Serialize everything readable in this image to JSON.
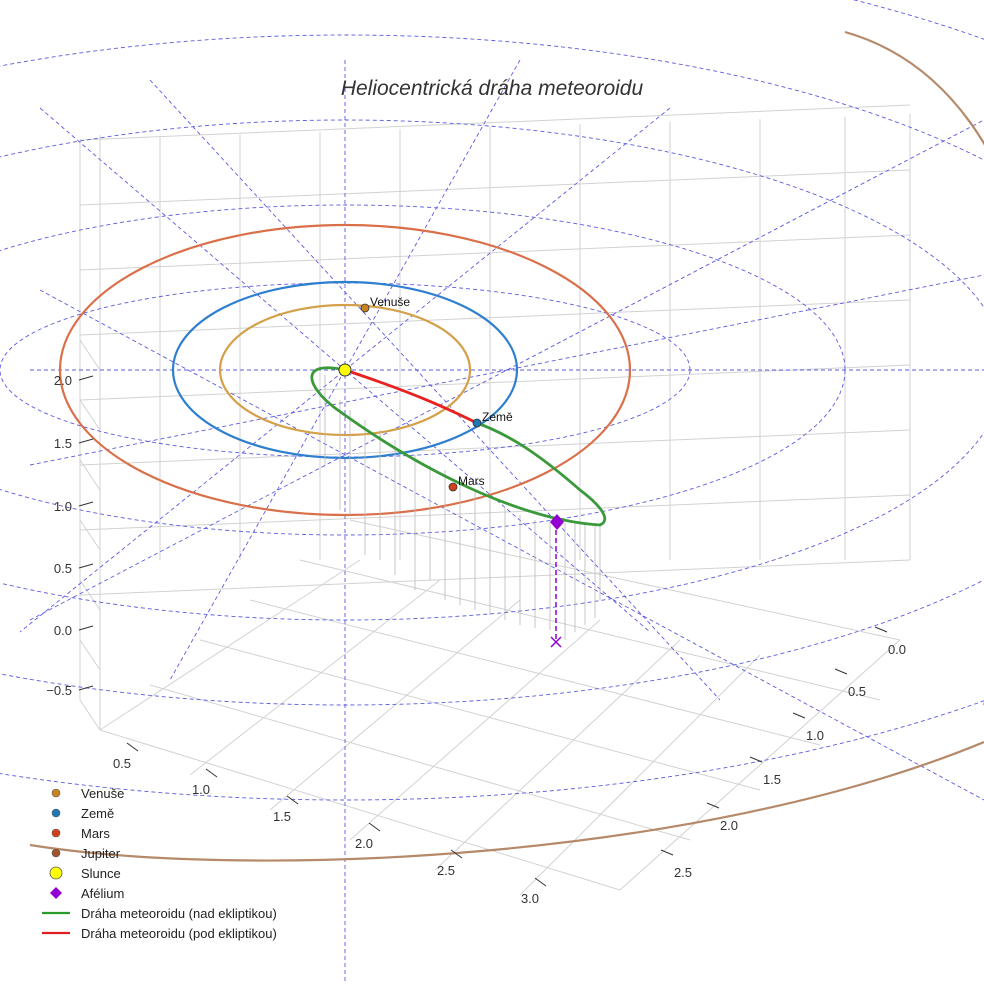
{
  "chart_data": {
    "type": "scatter3d",
    "title": "Heliocentrická dráha meteoroidu",
    "xlabel": "",
    "ylabel": "",
    "zlabel": "",
    "z_axis": {
      "ticks": [
        "−0.5",
        "0.0",
        "0.5",
        "1.0",
        "1.5",
        "2.0"
      ]
    },
    "x_axis": {
      "ticks": [
        "0.5",
        "1.0",
        "1.5",
        "2.0",
        "2.5",
        "3.0"
      ]
    },
    "y_axis": {
      "ticks": [
        "0.0",
        "0.5",
        "1.0",
        "1.5",
        "2.0",
        "2.5"
      ]
    },
    "planet_orbits": [
      {
        "name": "Venuše",
        "radius_au": 0.72,
        "color": "#d4a04a"
      },
      {
        "name": "Země",
        "radius_au": 1.0,
        "color": "#2f7fd0"
      },
      {
        "name": "Mars",
        "radius_au": 1.52,
        "color": "#d9704a"
      },
      {
        "name": "Jupiter",
        "radius_au": 5.2,
        "color": "#b5896a"
      }
    ],
    "planets": [
      {
        "name": "Venuše",
        "label": "Venuše",
        "color": "#c8821e"
      },
      {
        "name": "Země",
        "label": "Země",
        "color": "#1f77b4"
      },
      {
        "name": "Mars",
        "label": "Mars",
        "color": "#d0401a"
      }
    ],
    "sun": {
      "name": "Slunce",
      "color": "#ffff00"
    },
    "aphelion": {
      "name": "Afélium",
      "color": "#9400d3"
    },
    "meteoroid_orbit": {
      "above_ecliptic_color": "#3a9a3a",
      "below_ecliptic_color": "#e82020"
    },
    "legend": [
      {
        "label": "Venuše",
        "marker": "circle",
        "color": "#c8821e"
      },
      {
        "label": "Země",
        "marker": "circle",
        "color": "#1f77b4"
      },
      {
        "label": "Mars",
        "marker": "circle",
        "color": "#d0401a"
      },
      {
        "label": "Jupiter",
        "marker": "circle",
        "color": "#a0522d"
      },
      {
        "label": "Slunce",
        "marker": "circle-large",
        "color": "#ffff00"
      },
      {
        "label": "Afélium",
        "marker": "diamond",
        "color": "#9400d3"
      },
      {
        "label": "Dráha meteoroidu (nad ekliptikou)",
        "marker": "line",
        "color": "#2a9a2a"
      },
      {
        "label": "Dráha meteoroidu (pod ekliptikou)",
        "marker": "line",
        "color": "#e02020"
      }
    ]
  }
}
